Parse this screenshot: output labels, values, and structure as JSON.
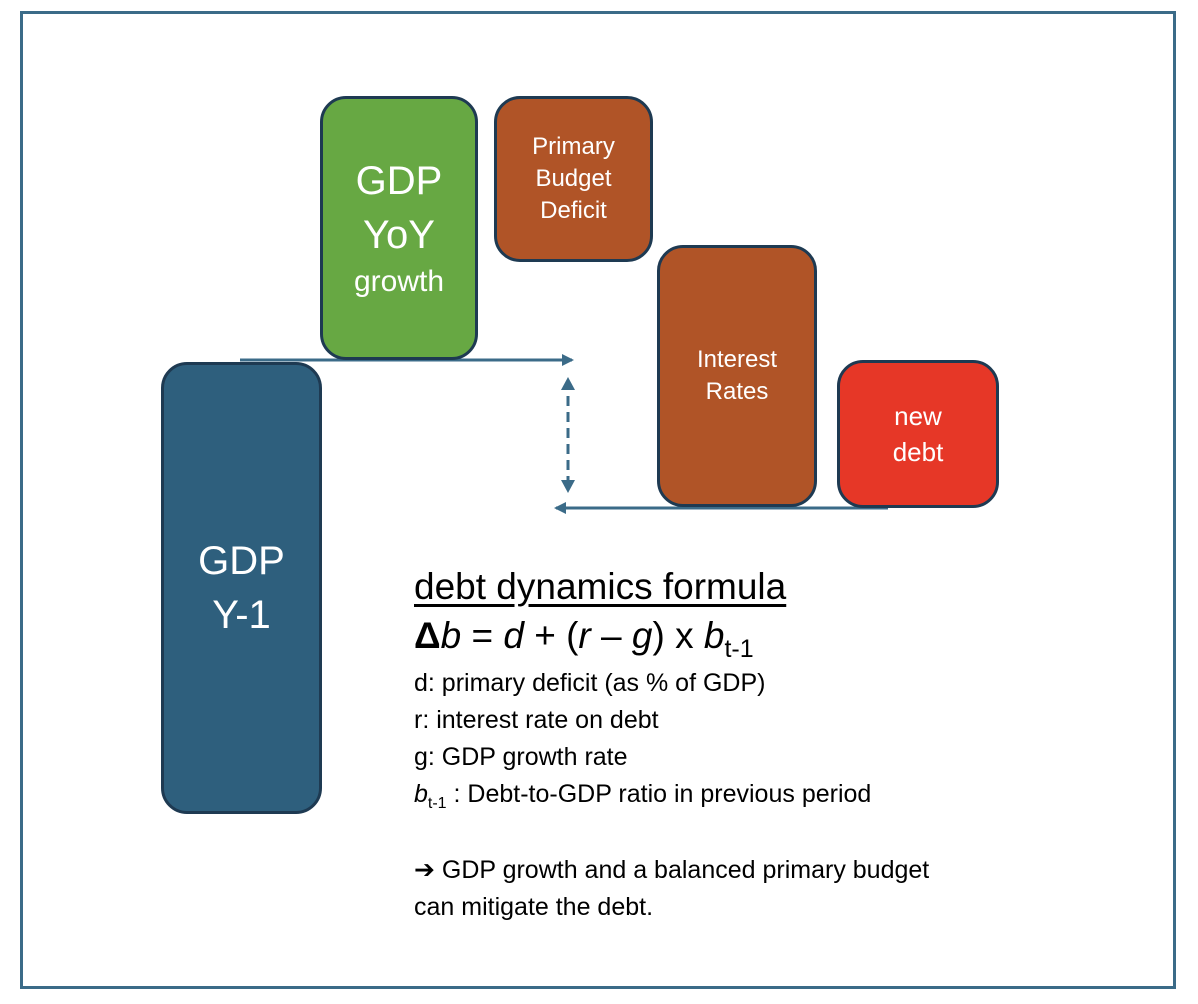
{
  "colors": {
    "frame": "#3b6b88",
    "gdp_prev": "#2e5f7d",
    "gdp_yoy": "#67a843",
    "deficit": "#b05427",
    "interest": "#b05427",
    "new_debt": "#e63727",
    "arrow": "#3b6b88",
    "box_border": "#1e3a52"
  },
  "boxes": {
    "gdp_prev": {
      "line1": "GDP",
      "line2": "Y-1"
    },
    "gdp_yoy": {
      "line1": "GDP",
      "line2": "YoY",
      "line3": "growth"
    },
    "deficit": {
      "line1": "Primary",
      "line2": "Budget",
      "line3": "Deficit"
    },
    "interest": {
      "line1": "Interest",
      "line2": "Rates"
    },
    "new_debt": {
      "line1": "new",
      "line2": "debt"
    }
  },
  "formula": {
    "title": "debt dynamics formula",
    "delta": "Δ",
    "b": "b",
    "eq_part1": " = ",
    "d": "d",
    "eq_part2": " + (",
    "r": "r",
    "minus": " – ",
    "g": "g",
    "eq_part3": ") x ",
    "b2": "b",
    "sub": "t-1"
  },
  "definitions": {
    "d": "d: primary deficit (as % of GDP)",
    "r": "r: interest rate on debt",
    "g": "g: GDP growth rate",
    "b_sym": "b",
    "b_sub": "t-1",
    "b_text": " : Debt-to-GDP ratio in previous period"
  },
  "conclusion": {
    "arrow": "➔",
    "line1": " GDP growth and a balanced primary budget",
    "line2": "can mitigate the debt."
  }
}
